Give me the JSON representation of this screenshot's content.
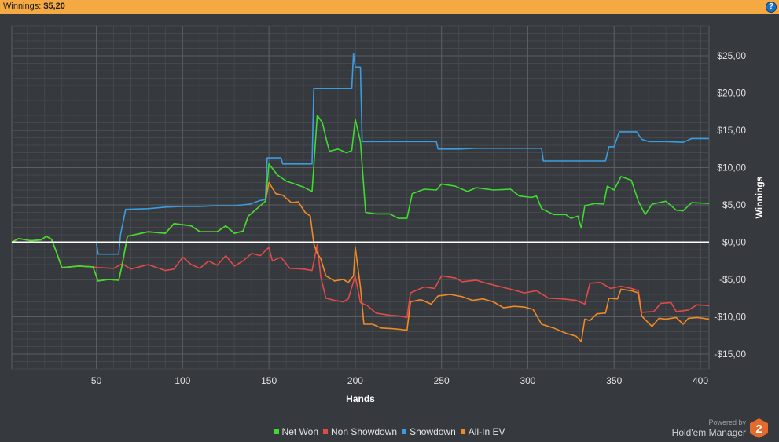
{
  "header": {
    "label": "Winnings:",
    "value": "$5,20",
    "help": "?"
  },
  "colors": {
    "net_won": "#3ddc2f",
    "non_showdown": "#e04a4a",
    "showdown": "#3b9de0",
    "all_in_ev": "#f08a25",
    "zero_line": "#ffffff",
    "header_bg": "#f5a942"
  },
  "brand": {
    "powered_by": "Powered by",
    "name": "Hold'em Manager",
    "badge": "2"
  },
  "chart_data": {
    "type": "line",
    "xlabel": "Hands",
    "ylabel": "Winnings",
    "xlim": [
      1,
      405
    ],
    "ylim": [
      -17,
      29
    ],
    "x_ticks": [
      50,
      100,
      150,
      200,
      250,
      300,
      350,
      400
    ],
    "y_ticks": [
      {
        "value": 25,
        "label": "$25,00"
      },
      {
        "value": 20,
        "label": "$20,00"
      },
      {
        "value": 15,
        "label": "$15,00"
      },
      {
        "value": 10,
        "label": "$10,00"
      },
      {
        "value": 5,
        "label": "$5,00"
      },
      {
        "value": 0,
        "label": "$0,00"
      },
      {
        "value": -5,
        "label": "-$5,00"
      },
      {
        "value": -10,
        "label": "-$10,00"
      },
      {
        "value": -15,
        "label": "-$15,00"
      }
    ],
    "grid": true,
    "legend_position": "bottom-center",
    "series": [
      {
        "name": "Net Won",
        "color": "#3ddc2f",
        "points": [
          [
            1,
            0
          ],
          [
            5,
            0.5
          ],
          [
            12,
            0.2
          ],
          [
            18,
            0.3
          ],
          [
            21,
            0.8
          ],
          [
            24,
            0.4
          ],
          [
            27,
            -1.4
          ],
          [
            30,
            -3.4
          ],
          [
            40,
            -3.2
          ],
          [
            48,
            -3.3
          ],
          [
            51,
            -5.2
          ],
          [
            57,
            -5
          ],
          [
            63,
            -5.1
          ],
          [
            65,
            -3
          ],
          [
            68,
            0.8
          ],
          [
            80,
            1.4
          ],
          [
            90,
            1.2
          ],
          [
            95,
            2.5
          ],
          [
            105,
            2.2
          ],
          [
            110,
            1.4
          ],
          [
            120,
            1.4
          ],
          [
            125,
            2.2
          ],
          [
            130,
            1.2
          ],
          [
            135,
            1.5
          ],
          [
            138,
            3.5
          ],
          [
            143,
            4.5
          ],
          [
            148,
            5.5
          ],
          [
            150,
            10.5
          ],
          [
            155,
            9
          ],
          [
            160,
            8.2
          ],
          [
            170,
            7.4
          ],
          [
            175,
            6.8
          ],
          [
            178,
            17
          ],
          [
            181,
            16
          ],
          [
            183,
            14
          ],
          [
            185,
            12.2
          ],
          [
            190,
            12.5
          ],
          [
            195,
            12
          ],
          [
            198,
            12.3
          ],
          [
            200,
            16.5
          ],
          [
            203,
            13.5
          ],
          [
            206,
            4
          ],
          [
            212,
            3.8
          ],
          [
            220,
            3.8
          ],
          [
            225,
            3.2
          ],
          [
            230,
            3.2
          ],
          [
            233,
            6.5
          ],
          [
            240,
            7.1
          ],
          [
            247,
            7
          ],
          [
            250,
            7.8
          ],
          [
            258,
            7.5
          ],
          [
            265,
            6.8
          ],
          [
            270,
            7.3
          ],
          [
            280,
            7
          ],
          [
            290,
            7.1
          ],
          [
            295,
            6.2
          ],
          [
            302,
            6
          ],
          [
            305,
            6.2
          ],
          [
            308,
            4.5
          ],
          [
            315,
            3.7
          ],
          [
            322,
            3.7
          ],
          [
            325,
            3.2
          ],
          [
            329,
            3.5
          ],
          [
            331,
            1.9
          ],
          [
            333,
            4.9
          ],
          [
            339,
            5.2
          ],
          [
            344,
            5.1
          ],
          [
            346,
            7.5
          ],
          [
            350,
            7
          ],
          [
            354,
            8.8
          ],
          [
            360,
            8.3
          ],
          [
            364,
            5.5
          ],
          [
            368,
            3.7
          ],
          [
            372,
            5.1
          ],
          [
            380,
            5.5
          ],
          [
            386,
            4.3
          ],
          [
            390,
            4.2
          ],
          [
            395,
            5.3
          ],
          [
            405,
            5.2
          ]
        ]
      },
      {
        "name": "Non Showdown",
        "color": "#e04a4a",
        "points": [
          [
            1,
            0
          ],
          [
            5,
            0.5
          ],
          [
            12,
            0.2
          ],
          [
            18,
            0.3
          ],
          [
            21,
            0.8
          ],
          [
            24,
            0.4
          ],
          [
            27,
            -1.4
          ],
          [
            30,
            -3.4
          ],
          [
            40,
            -3.2
          ],
          [
            48,
            -3.3
          ],
          [
            51,
            -3.4
          ],
          [
            60,
            -3.5
          ],
          [
            65,
            -2.9
          ],
          [
            70,
            -3.6
          ],
          [
            80,
            -3
          ],
          [
            90,
            -3.8
          ],
          [
            95,
            -3.6
          ],
          [
            100,
            -2
          ],
          [
            105,
            -3
          ],
          [
            110,
            -3.5
          ],
          [
            115,
            -2.5
          ],
          [
            120,
            -3.1
          ],
          [
            125,
            -1.8
          ],
          [
            130,
            -3.2
          ],
          [
            135,
            -2.5
          ],
          [
            140,
            -1.5
          ],
          [
            145,
            -1.8
          ],
          [
            150,
            -0.7
          ],
          [
            152,
            -2.5
          ],
          [
            157,
            -2
          ],
          [
            162,
            -3.5
          ],
          [
            170,
            -3.6
          ],
          [
            175,
            -3.8
          ],
          [
            178,
            -0.3
          ],
          [
            180,
            -4.6
          ],
          [
            183,
            -7.5
          ],
          [
            188,
            -7.8
          ],
          [
            193,
            -8
          ],
          [
            196,
            -7.6
          ],
          [
            200,
            -4.5
          ],
          [
            203,
            -8.1
          ],
          [
            207,
            -8.5
          ],
          [
            212,
            -9.5
          ],
          [
            220,
            -9.8
          ],
          [
            226,
            -9.9
          ],
          [
            230,
            -10.1
          ],
          [
            232,
            -6.8
          ],
          [
            240,
            -6
          ],
          [
            246,
            -6.2
          ],
          [
            250,
            -4.5
          ],
          [
            258,
            -4.8
          ],
          [
            262,
            -5.3
          ],
          [
            270,
            -5.1
          ],
          [
            276,
            -5.5
          ],
          [
            283,
            -5.9
          ],
          [
            290,
            -6.3
          ],
          [
            298,
            -6.8
          ],
          [
            305,
            -6.5
          ],
          [
            312,
            -7.5
          ],
          [
            320,
            -7.6
          ],
          [
            328,
            -7.8
          ],
          [
            333,
            -8.3
          ],
          [
            336,
            -5.5
          ],
          [
            342,
            -5.4
          ],
          [
            348,
            -6.2
          ],
          [
            354,
            -5.9
          ],
          [
            360,
            -6.2
          ],
          [
            364,
            -6.5
          ],
          [
            366,
            -9.4
          ],
          [
            373,
            -9.3
          ],
          [
            377,
            -8.2
          ],
          [
            383,
            -8.1
          ],
          [
            386,
            -9.3
          ],
          [
            393,
            -9.1
          ],
          [
            398,
            -8.4
          ],
          [
            405,
            -8.5
          ]
        ]
      },
      {
        "name": "Showdown",
        "color": "#3b9de0",
        "points": [
          [
            1,
            0
          ],
          [
            50,
            0
          ],
          [
            51,
            -1.6
          ],
          [
            63,
            -1.6
          ],
          [
            64,
            1
          ],
          [
            67,
            4.4
          ],
          [
            80,
            4.5
          ],
          [
            90,
            4.7
          ],
          [
            100,
            4.8
          ],
          [
            110,
            4.8
          ],
          [
            120,
            4.9
          ],
          [
            130,
            4.9
          ],
          [
            139,
            5.1
          ],
          [
            145,
            5.6
          ],
          [
            148,
            5.7
          ],
          [
            149,
            11.3
          ],
          [
            157,
            11.3
          ],
          [
            158,
            10.5
          ],
          [
            170,
            10.5
          ],
          [
            175,
            10.5
          ],
          [
            176,
            20.6
          ],
          [
            186,
            20.6
          ],
          [
            190,
            20.6
          ],
          [
            198,
            20.6
          ],
          [
            199,
            25.3
          ],
          [
            200,
            23.5
          ],
          [
            203,
            23.5
          ],
          [
            204,
            13.5
          ],
          [
            220,
            13.5
          ],
          [
            240,
            13.5
          ],
          [
            247,
            13.5
          ],
          [
            248,
            12.5
          ],
          [
            260,
            12.5
          ],
          [
            270,
            12.6
          ],
          [
            280,
            12.6
          ],
          [
            290,
            12.6
          ],
          [
            308,
            12.6
          ],
          [
            309,
            10.9
          ],
          [
            320,
            10.9
          ],
          [
            330,
            10.9
          ],
          [
            345,
            10.9
          ],
          [
            347,
            12.8
          ],
          [
            350,
            12.8
          ],
          [
            353,
            14.8
          ],
          [
            363,
            14.8
          ],
          [
            366,
            13.8
          ],
          [
            370,
            13.5
          ],
          [
            380,
            13.5
          ],
          [
            390,
            13.4
          ],
          [
            395,
            13.9
          ],
          [
            405,
            13.9
          ]
        ]
      },
      {
        "name": "All-In EV",
        "color": "#f08a25",
        "points": [
          [
            1,
            0
          ],
          [
            5,
            0.5
          ],
          [
            12,
            0.2
          ],
          [
            18,
            0.3
          ],
          [
            21,
            0.8
          ],
          [
            24,
            0.4
          ],
          [
            27,
            -1.4
          ],
          [
            30,
            -3.4
          ],
          [
            40,
            -3.2
          ],
          [
            48,
            -3.3
          ],
          [
            51,
            -5.2
          ],
          [
            57,
            -5
          ],
          [
            63,
            -5.1
          ],
          [
            65,
            -3
          ],
          [
            68,
            0.8
          ],
          [
            80,
            1.4
          ],
          [
            90,
            1.2
          ],
          [
            95,
            2.5
          ],
          [
            105,
            2.2
          ],
          [
            110,
            1.4
          ],
          [
            120,
            1.4
          ],
          [
            125,
            2.2
          ],
          [
            130,
            1.2
          ],
          [
            135,
            1.5
          ],
          [
            138,
            3.5
          ],
          [
            143,
            4.5
          ],
          [
            148,
            5.5
          ],
          [
            150,
            8
          ],
          [
            154,
            6.5
          ],
          [
            158,
            6.3
          ],
          [
            163,
            5.3
          ],
          [
            167,
            5.4
          ],
          [
            171,
            4
          ],
          [
            174,
            3.5
          ],
          [
            176,
            -0.2
          ],
          [
            178,
            -1.5
          ],
          [
            180,
            -2.2
          ],
          [
            183,
            -4.5
          ],
          [
            188,
            -5.2
          ],
          [
            193,
            -5
          ],
          [
            196,
            -5.4
          ],
          [
            199,
            -4.5
          ],
          [
            200,
            -0.6
          ],
          [
            203,
            -6
          ],
          [
            205,
            -11
          ],
          [
            210,
            -11
          ],
          [
            215,
            -11.5
          ],
          [
            222,
            -11.6
          ],
          [
            226,
            -11.7
          ],
          [
            230,
            -11.8
          ],
          [
            232,
            -8
          ],
          [
            238,
            -7.7
          ],
          [
            244,
            -8.3
          ],
          [
            248,
            -7.2
          ],
          [
            255,
            -7
          ],
          [
            262,
            -7.3
          ],
          [
            268,
            -7.8
          ],
          [
            274,
            -7.6
          ],
          [
            280,
            -8
          ],
          [
            286,
            -8.8
          ],
          [
            292,
            -8.6
          ],
          [
            298,
            -8.7
          ],
          [
            303,
            -9
          ],
          [
            308,
            -11
          ],
          [
            315,
            -11.5
          ],
          [
            322,
            -12.2
          ],
          [
            328,
            -12.6
          ],
          [
            331,
            -13.3
          ],
          [
            333,
            -10.3
          ],
          [
            336,
            -10.5
          ],
          [
            340,
            -9.6
          ],
          [
            345,
            -9.5
          ],
          [
            347,
            -7.5
          ],
          [
            352,
            -7.6
          ],
          [
            354,
            -6.3
          ],
          [
            360,
            -6.5
          ],
          [
            364,
            -6.8
          ],
          [
            366,
            -9.9
          ],
          [
            372,
            -11.3
          ],
          [
            376,
            -10.2
          ],
          [
            380,
            -10.3
          ],
          [
            386,
            -10.1
          ],
          [
            390,
            -11
          ],
          [
            393,
            -10.2
          ],
          [
            398,
            -10.1
          ],
          [
            405,
            -10.3
          ]
        ]
      }
    ]
  }
}
